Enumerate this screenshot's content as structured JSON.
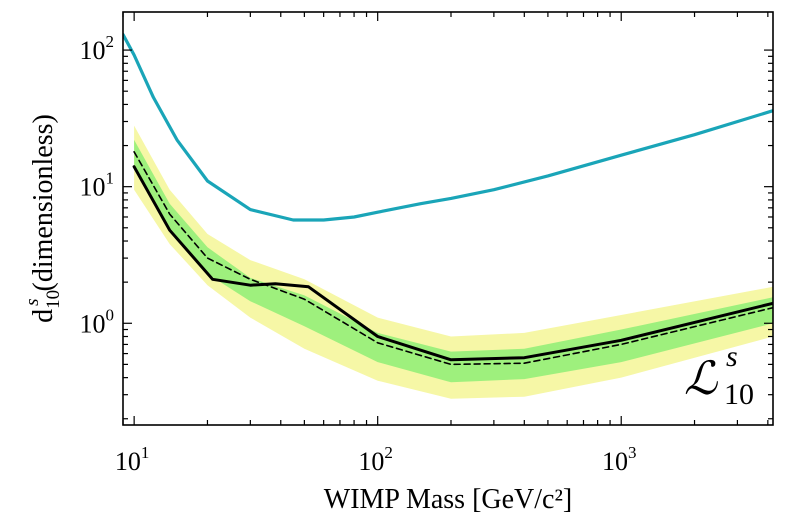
{
  "chart_data": {
    "type": "line",
    "x_scale": "log",
    "y_scale": "log",
    "xlim": [
      9,
      4200
    ],
    "ylim": [
      0.18,
      190
    ],
    "grid": false,
    "xlabel": "WIMP Mass [GeV/c²]",
    "ylabel_main": "d",
    "ylabel_sup": "s",
    "ylabel_sub": "10",
    "ylabel_rest": " (dimensionless)",
    "x_ticks": [
      {
        "value": 10,
        "base": "10",
        "exp": "1"
      },
      {
        "value": 100,
        "base": "10",
        "exp": "2"
      },
      {
        "value": 1000,
        "base": "10",
        "exp": "3"
      }
    ],
    "y_ticks": [
      {
        "value": 1,
        "base": "10",
        "exp": "0"
      },
      {
        "value": 10,
        "base": "10",
        "exp": "1"
      },
      {
        "value": 100,
        "base": "10",
        "exp": "2"
      }
    ],
    "legend": {
      "symbol": "ℒ",
      "sup": "s",
      "sub": "10",
      "position": "bottom-right"
    },
    "series": [
      {
        "kind": "band",
        "role": "2-sigma",
        "color": "#f6f7a6",
        "x": [
          10,
          14,
          20,
          30,
          50,
          100,
          200,
          400,
          1000,
          4200
        ],
        "lower": [
          9.5,
          3.8,
          1.9,
          1.1,
          0.65,
          0.38,
          0.28,
          0.29,
          0.4,
          0.8
        ],
        "upper": [
          28,
          9.5,
          4.5,
          2.9,
          2.1,
          1.1,
          0.8,
          0.85,
          1.15,
          1.85
        ]
      },
      {
        "kind": "band",
        "role": "1-sigma",
        "color": "#9ef07d",
        "x": [
          10,
          14,
          20,
          30,
          50,
          100,
          200,
          400,
          1000,
          4200
        ],
        "lower": [
          13.5,
          5.0,
          2.3,
          1.45,
          0.95,
          0.52,
          0.37,
          0.39,
          0.52,
          1.0
        ],
        "upper": [
          22,
          7.5,
          3.6,
          2.15,
          1.6,
          0.85,
          0.62,
          0.65,
          0.9,
          1.55
        ]
      },
      {
        "kind": "line",
        "role": "expected",
        "color": "#000000",
        "dash": true,
        "x": [
          10,
          14,
          20,
          30,
          50,
          100,
          200,
          400,
          1000,
          4200
        ],
        "y": [
          18,
          6.3,
          3.0,
          2.1,
          1.5,
          0.72,
          0.5,
          0.51,
          0.7,
          1.3
        ]
      },
      {
        "kind": "line",
        "role": "observed",
        "color": "#000000",
        "dash": false,
        "x": [
          10,
          14,
          21,
          30,
          38,
          52,
          100,
          200,
          400,
          1000,
          4200
        ],
        "y": [
          14,
          4.8,
          2.1,
          1.9,
          1.95,
          1.85,
          0.8,
          0.54,
          0.56,
          0.75,
          1.4
        ]
      },
      {
        "kind": "line",
        "role": "upper-curve",
        "color": "#1aa5b8",
        "dash": false,
        "x": [
          9,
          10,
          12,
          15,
          20,
          30,
          45,
          60,
          80,
          100,
          150,
          200,
          300,
          500,
          1000,
          2000,
          4200
        ],
        "y": [
          130,
          92,
          45,
          22,
          11,
          6.8,
          5.7,
          5.7,
          6.0,
          6.5,
          7.5,
          8.2,
          9.5,
          12,
          17,
          24,
          36
        ]
      }
    ]
  }
}
